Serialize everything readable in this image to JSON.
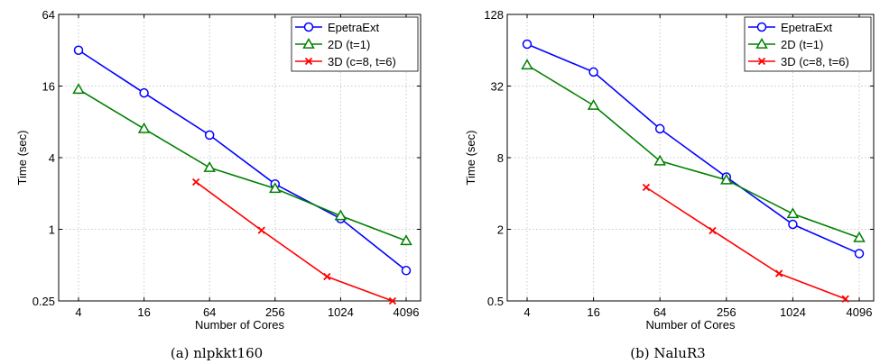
{
  "chart_data": [
    {
      "type": "line",
      "caption": "(a) nlpkkt160",
      "xlabel": "Number of Cores",
      "ylabel": "Time (sec)",
      "x_scale": "log2",
      "y_scale": "log2",
      "xlim": [
        4,
        4096
      ],
      "ylim": [
        0.25,
        64
      ],
      "x_ticks": [
        4,
        16,
        64,
        256,
        1024,
        4096
      ],
      "x_tick_labels": [
        "4",
        "16",
        "64",
        "256",
        "1024",
        "4096"
      ],
      "y_ticks": [
        0.25,
        1,
        4,
        16,
        64
      ],
      "y_tick_labels": [
        "0.25",
        "1",
        "4",
        "16",
        "64"
      ],
      "grid": true,
      "legend_position": "top-right",
      "series": [
        {
          "name": "EpetraExt",
          "color": "#0000ff",
          "marker": "circle",
          "x": [
            4,
            16,
            64,
            256,
            1024,
            4096
          ],
          "y": [
            32,
            14,
            6.2,
            2.4,
            1.23,
            0.45
          ]
        },
        {
          "name": "2D (t=1)",
          "color": "#008000",
          "marker": "triangle",
          "x": [
            4,
            16,
            64,
            256,
            1024,
            4096
          ],
          "y": [
            15,
            7,
            3.3,
            2.2,
            1.3,
            0.8
          ]
        },
        {
          "name": "3D (c=8, t=6)",
          "color": "#ff0000",
          "marker": "x",
          "x": [
            48,
            192,
            768,
            3072
          ],
          "y": [
            2.5,
            0.98,
            0.4,
            0.25
          ]
        }
      ]
    },
    {
      "type": "line",
      "caption": "(b) NaluR3",
      "xlabel": "Number of Cores",
      "ylabel": "Time (sec)",
      "x_scale": "log2",
      "y_scale": "log2",
      "xlim": [
        4,
        4096
      ],
      "ylim": [
        0.5,
        128
      ],
      "x_ticks": [
        4,
        16,
        64,
        256,
        1024,
        4096
      ],
      "x_tick_labels": [
        "4",
        "16",
        "64",
        "256",
        "1024",
        "4096"
      ],
      "y_ticks": [
        0.5,
        2,
        8,
        32,
        128
      ],
      "y_tick_labels": [
        "0.5",
        "2",
        "8",
        "32",
        "128"
      ],
      "grid": true,
      "legend_position": "top-right",
      "series": [
        {
          "name": "EpetraExt",
          "color": "#0000ff",
          "marker": "circle",
          "x": [
            4,
            16,
            64,
            256,
            1024,
            4096
          ],
          "y": [
            72,
            42,
            14,
            5.5,
            2.2,
            1.25
          ]
        },
        {
          "name": "2D (t=1)",
          "color": "#008000",
          "marker": "triangle",
          "x": [
            4,
            16,
            64,
            256,
            1024,
            4096
          ],
          "y": [
            48,
            22,
            7.5,
            5.2,
            2.7,
            1.7
          ]
        },
        {
          "name": "3D (c=8, t=6)",
          "color": "#ff0000",
          "marker": "x",
          "x": [
            48,
            192,
            768,
            3072
          ],
          "y": [
            4.5,
            1.95,
            0.85,
            0.52
          ]
        }
      ]
    }
  ]
}
